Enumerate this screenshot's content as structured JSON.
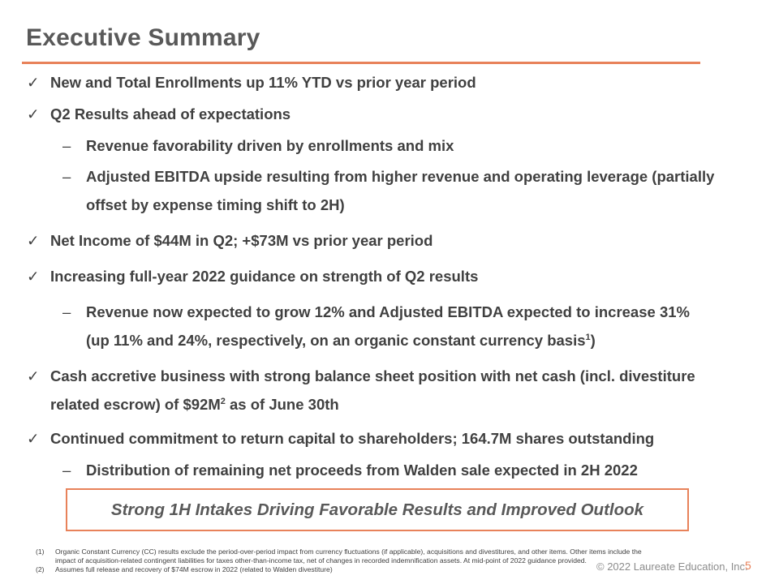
{
  "title": "Executive Summary",
  "bullets": [
    {
      "mark": "✓",
      "text": "New and Total Enrollments up 11% YTD vs prior year period"
    },
    {
      "mark": "✓",
      "text": "Q2 Results ahead of expectations"
    },
    {
      "mark": "–",
      "text": "Revenue favorability driven by enrollments and mix"
    },
    {
      "mark": "–",
      "line1": "Adjusted EBITDA upside resulting from higher revenue and operating leverage (partially",
      "line2": "offset by expense timing shift to 2H)"
    },
    {
      "mark": "✓",
      "text": "Net Income of $44M in Q2; +$73M vs prior year period"
    },
    {
      "mark": "✓",
      "text": "Increasing full-year 2022 guidance on strength of Q2 results"
    },
    {
      "mark": "–",
      "line1": "Revenue now expected to grow 12% and Adjusted EBITDA expected to increase 31%",
      "line2_pre": "(up 11% and 24%, respectively, on an organic constant currency basis",
      "line2_sup": "1",
      "line2_post": ")"
    },
    {
      "mark": "✓",
      "line1": "Cash accretive business with strong balance sheet position with net cash (incl. divestiture",
      "line2_pre": "related escrow) of $92M",
      "line2_sup": "2",
      "line2_post": " as of June 30th"
    },
    {
      "mark": "✓",
      "text": "Continued commitment to return capital to shareholders; 164.7M shares outstanding"
    },
    {
      "mark": "–",
      "text": "Distribution of remaining net proceeds from Walden sale expected in 2H 2022"
    }
  ],
  "callout": "Strong 1H Intakes Driving Favorable Results and Improved Outlook",
  "footnotes": [
    {
      "num": "(1)",
      "text": "Organic Constant Currency (CC) results exclude the period-over-period impact from currency fluctuations (if applicable), acquisitions and divestitures, and other items. Other items include the impact of acquisition-related contingent liabilities for taxes other-than-income tax, net of changes in recorded indemnification assets.  At mid-point of 2022 guidance provided."
    },
    {
      "num": "(2)",
      "text": "Assumes full release and recovery of $74M escrow in 2022 (related to Walden divestiture)"
    }
  ],
  "copyright": "© 2022 Laureate Education, Inc.",
  "page_number": "5",
  "colors": {
    "accent": "#E8825A",
    "title": "#595959",
    "body": "#404040"
  }
}
